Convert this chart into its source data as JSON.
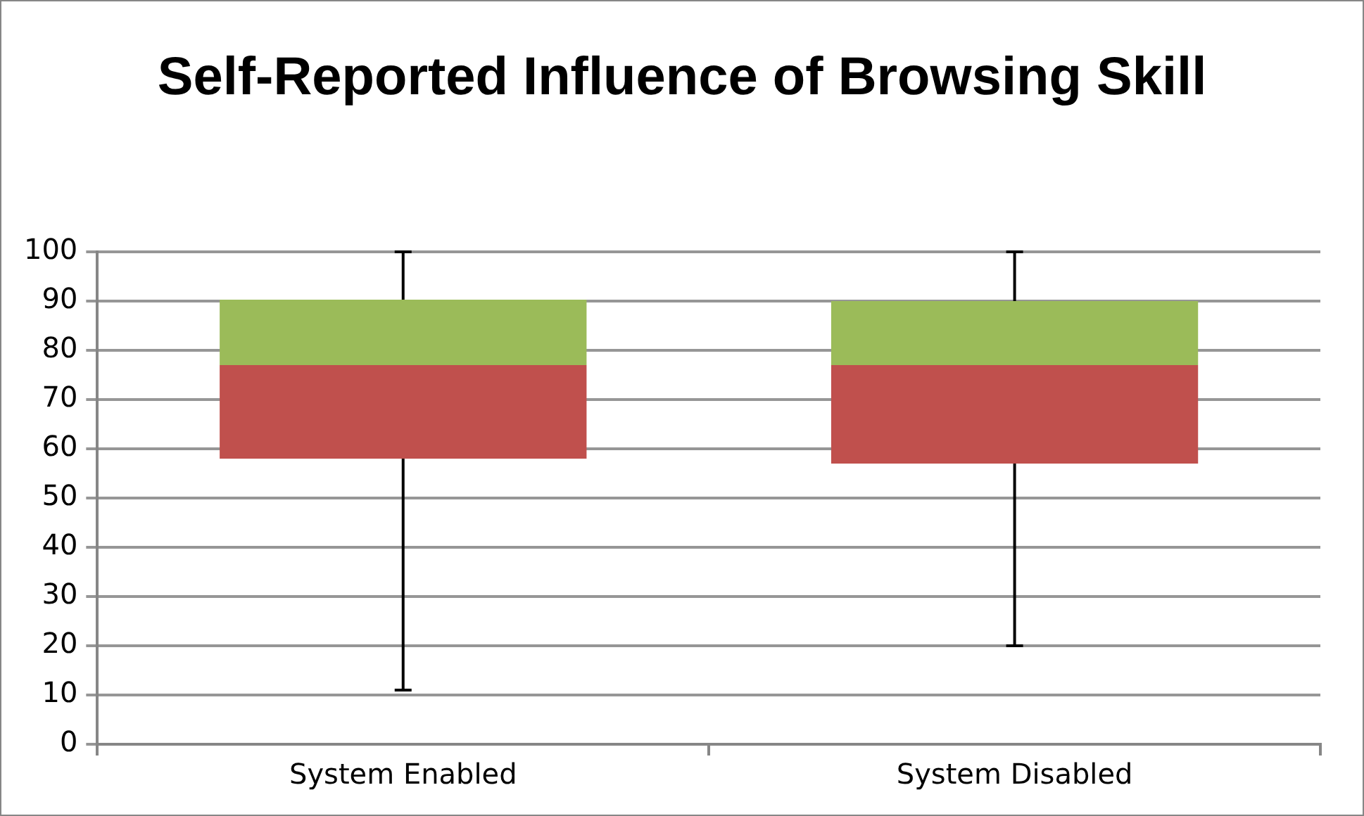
{
  "chart_data": {
    "type": "box",
    "title": "Self-Reported Influence of Browsing Skill",
    "categories": [
      "System Enabled",
      "System Disabled"
    ],
    "boxes": [
      {
        "low": 11,
        "q1": 58,
        "median": 77,
        "q3": 90.3,
        "high": 100
      },
      {
        "low": 20,
        "q1": 57,
        "median": 77,
        "q3": 90,
        "high": 100
      }
    ],
    "ylim": [
      0,
      100
    ],
    "yticks": [
      0,
      10,
      20,
      30,
      40,
      50,
      60,
      70,
      80,
      90,
      100
    ],
    "grid": "y",
    "legend": false
  }
}
